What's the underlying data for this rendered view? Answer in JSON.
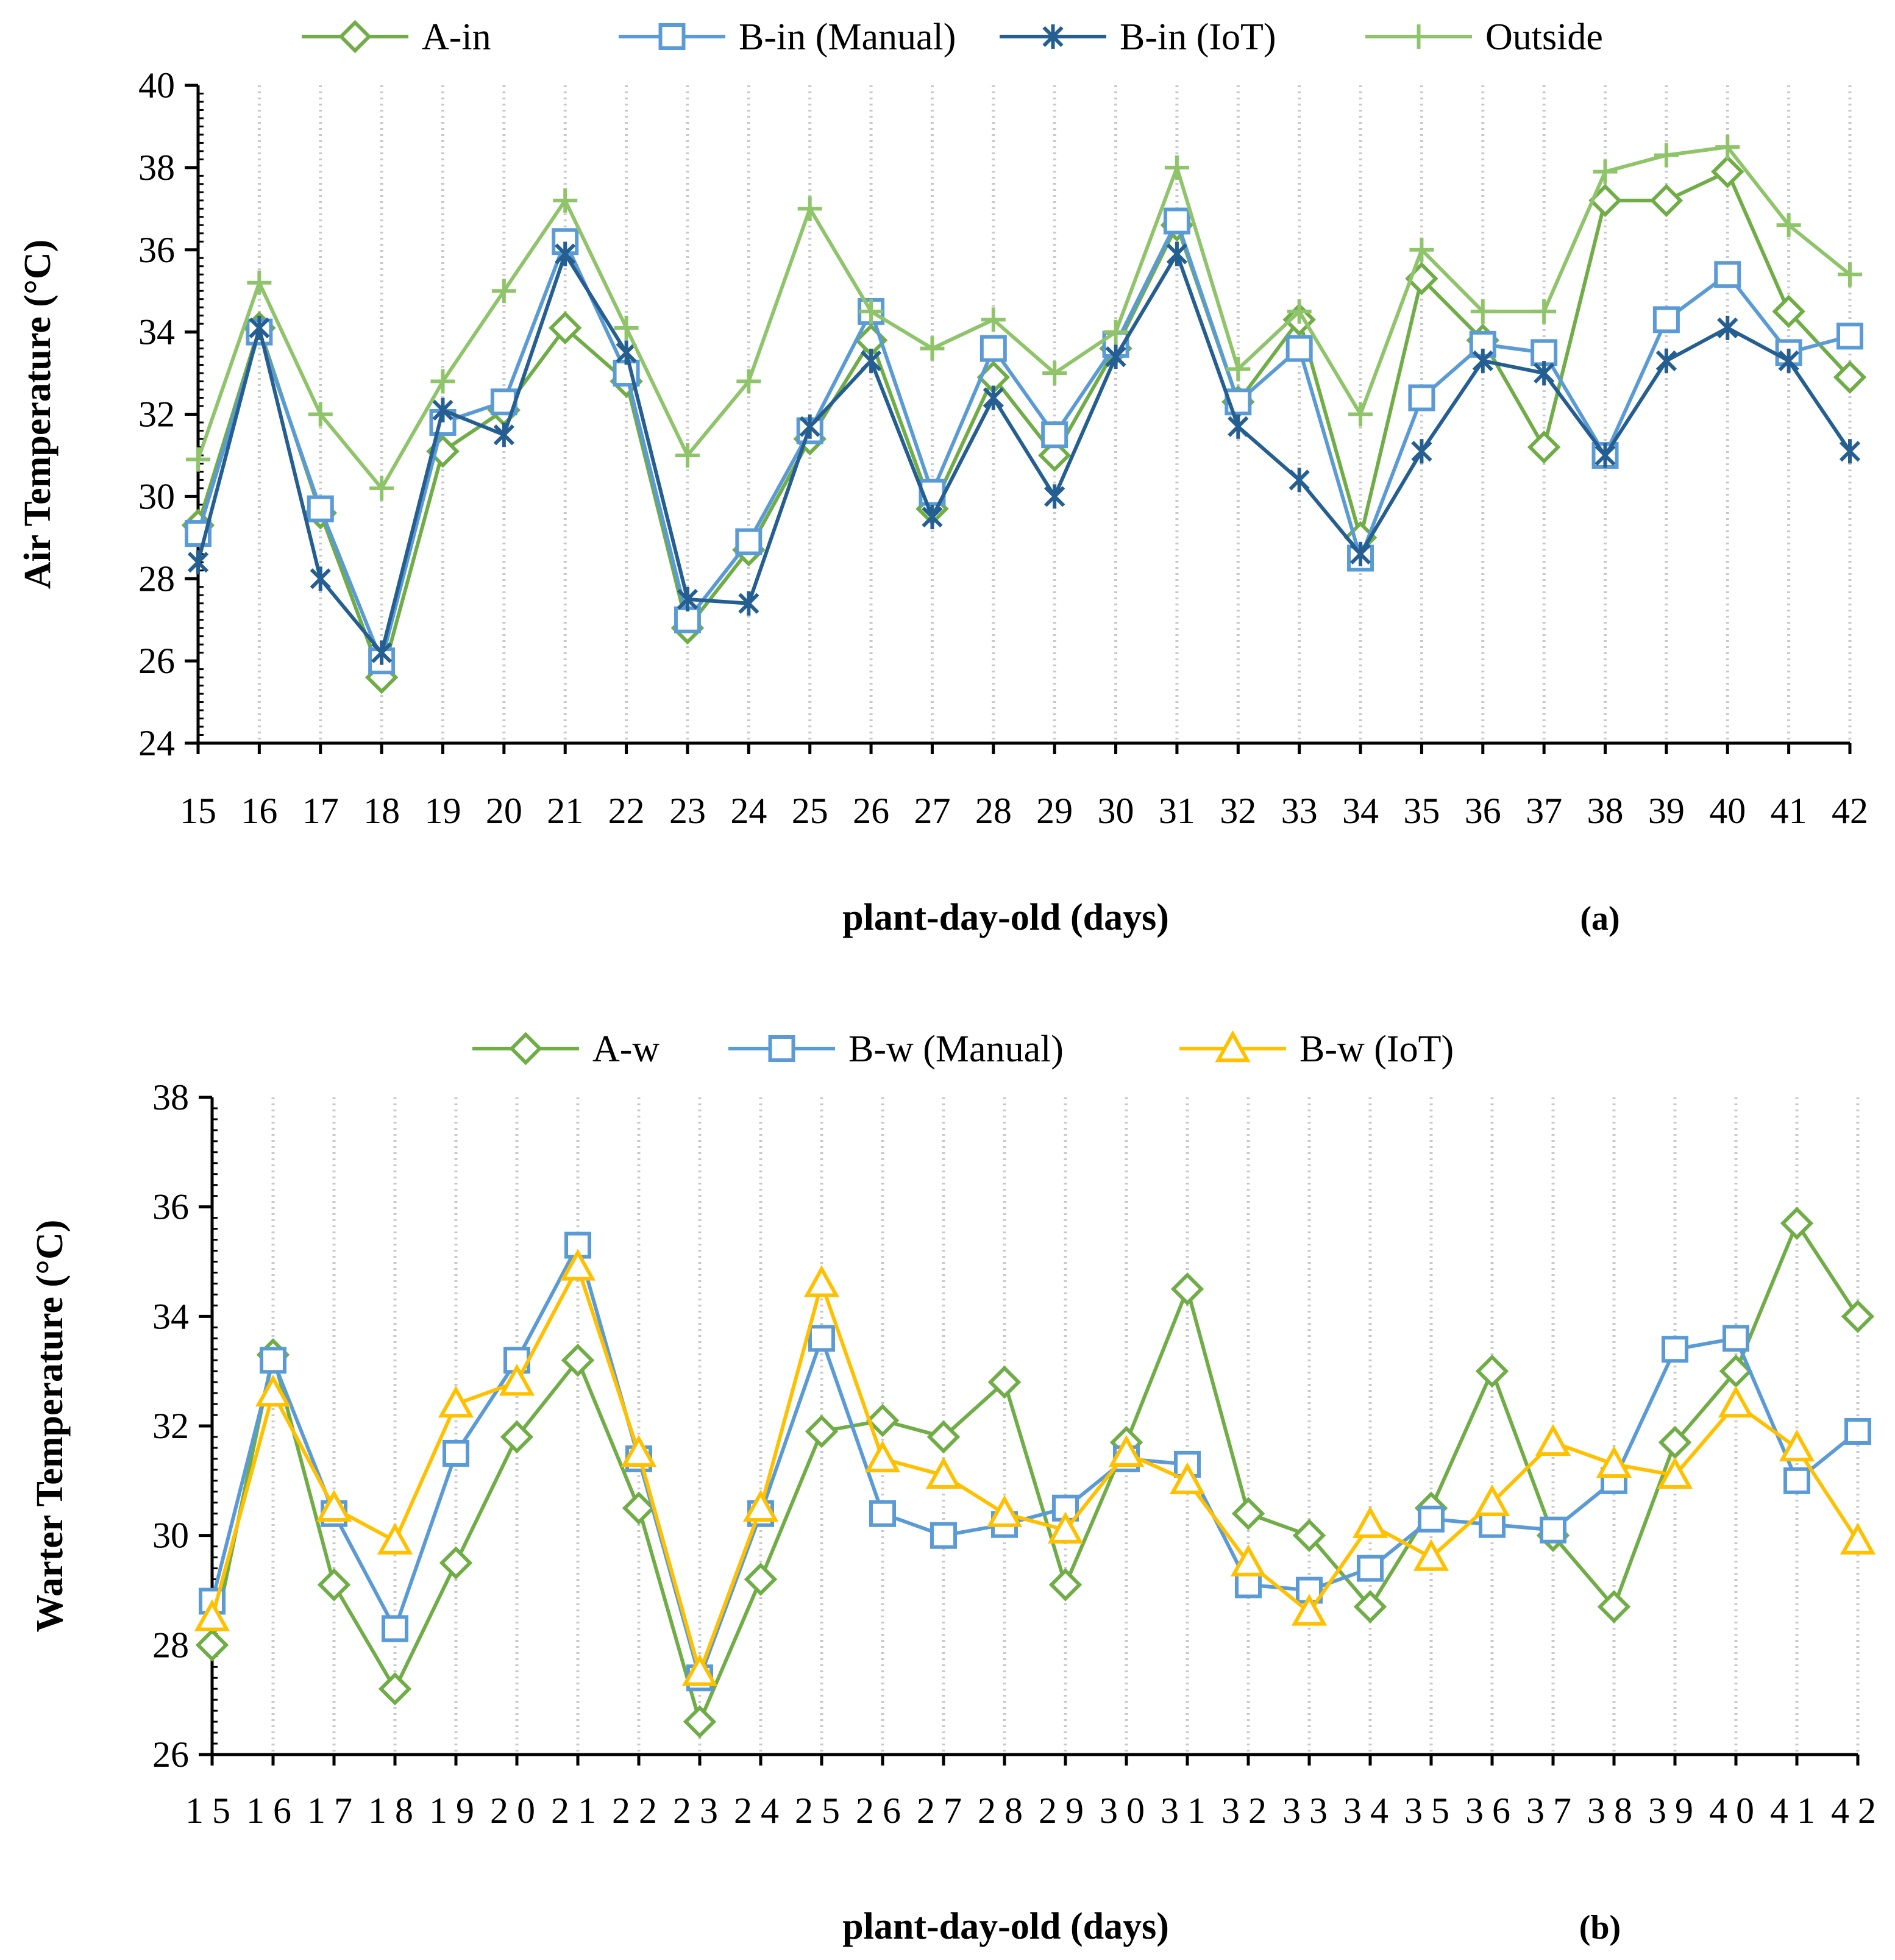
{
  "chart_data": [
    {
      "type": "line",
      "panel_label": "(a)",
      "xlabel": "plant-day-old (days)",
      "ylabel": "Air Temperature (°C)",
      "categories": [
        "15",
        "16",
        "17",
        "18",
        "19",
        "20",
        "21",
        "22",
        "23",
        "24",
        "25",
        "26",
        "27",
        "28",
        "29",
        "30",
        "31",
        "32",
        "33",
        "34",
        "35",
        "36",
        "37",
        "38",
        "39",
        "40",
        "41",
        "42"
      ],
      "ylim": [
        24,
        40
      ],
      "yticks": [
        "24",
        "26",
        "28",
        "30",
        "32",
        "34",
        "36",
        "38",
        "40"
      ],
      "grid": "vertical dotted",
      "legend": "top",
      "series": [
        {
          "name": "A-in",
          "marker": "diamond",
          "color": "#70ad47",
          "values": [
            29.3,
            34.1,
            29.6,
            25.6,
            31.1,
            32.1,
            34.1,
            32.8,
            26.8,
            28.7,
            31.4,
            33.8,
            29.7,
            32.9,
            31.0,
            33.6,
            36.6,
            32.3,
            34.3,
            29.0,
            35.3,
            33.8,
            31.2,
            37.2,
            37.2,
            37.9,
            34.5,
            32.9
          ]
        },
        {
          "name": "B-in (Manual)",
          "marker": "square",
          "color": "#5b9bd5",
          "values": [
            29.1,
            34.0,
            29.7,
            26.0,
            31.8,
            32.3,
            36.2,
            33.0,
            27.0,
            28.9,
            31.6,
            34.5,
            30.1,
            33.6,
            31.5,
            33.7,
            36.7,
            32.3,
            33.6,
            28.5,
            32.4,
            33.7,
            33.5,
            31.0,
            34.3,
            35.4,
            33.5,
            33.9
          ]
        },
        {
          "name": "B-in (IoT)",
          "marker": "asterisk",
          "color": "#255e91",
          "values": [
            28.4,
            34.1,
            28.0,
            26.2,
            32.1,
            31.5,
            35.9,
            33.5,
            27.5,
            27.4,
            31.7,
            33.3,
            29.5,
            32.4,
            30.0,
            33.4,
            35.9,
            31.7,
            30.4,
            28.6,
            31.1,
            33.3,
            33.0,
            31.0,
            33.3,
            34.1,
            33.3,
            31.1
          ]
        },
        {
          "name": "Outside",
          "marker": "plus",
          "color": "#8fc46b",
          "values": [
            30.9,
            35.2,
            32.0,
            30.2,
            32.8,
            35.0,
            37.2,
            34.1,
            31.0,
            32.8,
            37.0,
            34.5,
            33.6,
            34.3,
            33.0,
            34.0,
            38.0,
            33.1,
            34.5,
            32.0,
            36.0,
            34.5,
            34.5,
            37.9,
            38.3,
            38.5,
            36.6,
            35.4
          ]
        }
      ]
    },
    {
      "type": "line",
      "panel_label": "(b)",
      "xlabel": "plant-day-old (days)",
      "ylabel": "Warter Temperature (°C)",
      "categories": [
        "15",
        "16",
        "17",
        "18",
        "19",
        "20",
        "21",
        "22",
        "23",
        "24",
        "25",
        "26",
        "27",
        "28",
        "29",
        "30",
        "31",
        "32",
        "33",
        "34",
        "35",
        "36",
        "37",
        "38",
        "39",
        "40",
        "41",
        "42"
      ],
      "ylim": [
        26,
        38
      ],
      "yticks": [
        "26",
        "28",
        "30",
        "32",
        "34",
        "36",
        "38"
      ],
      "grid": "vertical dotted",
      "legend": "top",
      "series": [
        {
          "name": "A-w",
          "marker": "diamond",
          "color": "#70ad47",
          "values": [
            28.0,
            33.3,
            29.1,
            27.2,
            29.5,
            31.8,
            33.2,
            30.5,
            26.6,
            29.2,
            31.9,
            32.1,
            31.8,
            32.8,
            29.1,
            31.7,
            34.5,
            30.4,
            30.0,
            28.7,
            30.5,
            33.0,
            30.0,
            28.7,
            31.7,
            33.0,
            35.7,
            34.0
          ]
        },
        {
          "name": "B-w (Manual)",
          "marker": "square",
          "color": "#5b9bd5",
          "values": [
            28.8,
            33.2,
            30.4,
            28.3,
            31.5,
            33.2,
            35.3,
            31.4,
            27.4,
            30.4,
            33.6,
            30.4,
            30.0,
            30.2,
            30.5,
            31.4,
            31.3,
            29.1,
            29.0,
            29.4,
            30.3,
            30.2,
            30.1,
            31.0,
            33.4,
            33.6,
            31.0,
            31.9
          ]
        },
        {
          "name": "B-w (IoT)",
          "marker": "triangle",
          "color": "#ffc000",
          "values": [
            28.5,
            32.6,
            30.5,
            29.9,
            32.4,
            32.8,
            34.9,
            31.5,
            27.5,
            30.5,
            34.6,
            31.4,
            31.1,
            30.4,
            30.1,
            31.5,
            31.0,
            29.5,
            28.6,
            30.2,
            29.6,
            30.6,
            31.7,
            31.3,
            31.1,
            32.4,
            31.6,
            29.9
          ]
        }
      ]
    }
  ]
}
